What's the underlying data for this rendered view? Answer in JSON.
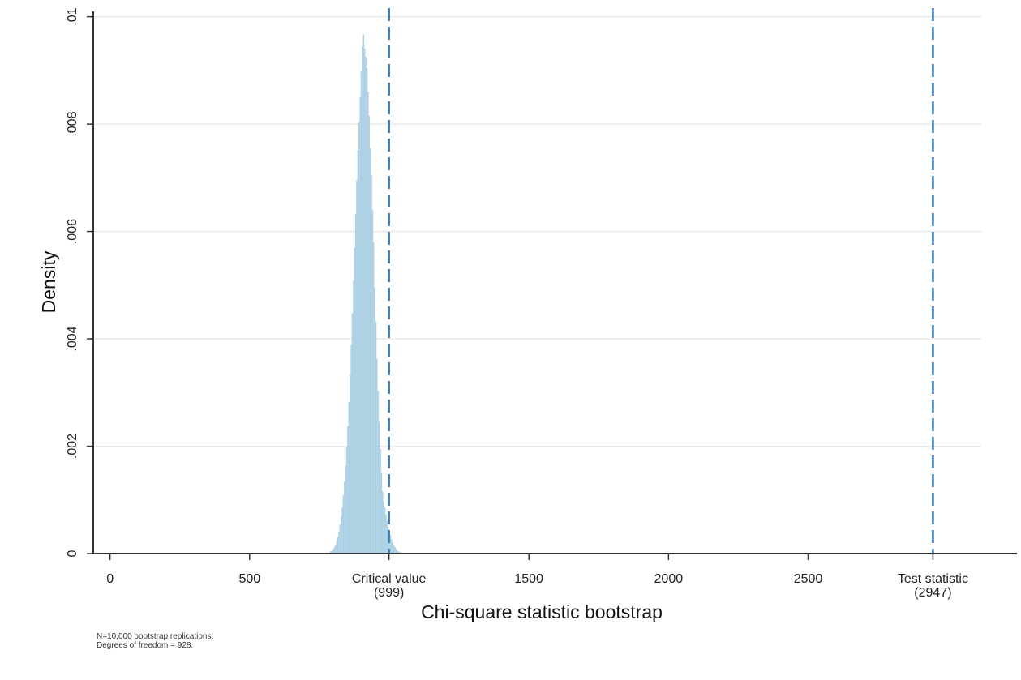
{
  "chart_data": {
    "type": "bar",
    "xlabel": "Chi-square statistic bootstrap",
    "ylabel": "Density",
    "xlim": [
      -60,
      3120
    ],
    "ylim": [
      0,
      0.0101
    ],
    "x_ticks": [
      {
        "value": 0,
        "label": "0"
      },
      {
        "value": 500,
        "label": "500"
      },
      {
        "value": 1500,
        "label": "1500"
      },
      {
        "value": 2000,
        "label": "2000"
      },
      {
        "value": 2500,
        "label": "2500"
      }
    ],
    "y_ticks": [
      {
        "value": 0,
        "label": "0"
      },
      {
        "value": 0.002,
        "label": ".002"
      },
      {
        "value": 0.004,
        "label": ".004"
      },
      {
        "value": 0.006,
        "label": ".006"
      },
      {
        "value": 0.008,
        "label": ".008"
      },
      {
        "value": 0.01,
        "label": ".01"
      }
    ],
    "grid": true,
    "bar_color": "#a9cfe3",
    "reference_lines": [
      {
        "x": 999,
        "label": "Critical value",
        "value_label": "(999)",
        "color": "#3d7fb8"
      },
      {
        "x": 2947,
        "label": "Test statistic",
        "value_label": "(2947)",
        "color": "#3d7fb8"
      }
    ],
    "histogram": {
      "bin_width": 4,
      "bins": [
        {
          "x": 788,
          "y": 3e-05
        },
        {
          "x": 792,
          "y": 4e-05
        },
        {
          "x": 796,
          "y": 5e-05
        },
        {
          "x": 800,
          "y": 8e-05
        },
        {
          "x": 804,
          "y": 0.00012
        },
        {
          "x": 808,
          "y": 0.00017
        },
        {
          "x": 812,
          "y": 0.00023
        },
        {
          "x": 816,
          "y": 0.00031
        },
        {
          "x": 820,
          "y": 0.00041
        },
        {
          "x": 824,
          "y": 0.00054
        },
        {
          "x": 828,
          "y": 0.00068
        },
        {
          "x": 832,
          "y": 0.00086
        },
        {
          "x": 836,
          "y": 0.00108
        },
        {
          "x": 840,
          "y": 0.00134
        },
        {
          "x": 844,
          "y": 0.00163
        },
        {
          "x": 848,
          "y": 0.00197
        },
        {
          "x": 852,
          "y": 0.00237
        },
        {
          "x": 856,
          "y": 0.00282
        },
        {
          "x": 860,
          "y": 0.00333
        },
        {
          "x": 864,
          "y": 0.00388
        },
        {
          "x": 868,
          "y": 0.00447
        },
        {
          "x": 872,
          "y": 0.00508
        },
        {
          "x": 876,
          "y": 0.0057
        },
        {
          "x": 880,
          "y": 0.00633
        },
        {
          "x": 884,
          "y": 0.00695
        },
        {
          "x": 888,
          "y": 0.00752
        },
        {
          "x": 892,
          "y": 0.00803
        },
        {
          "x": 896,
          "y": 0.0085
        },
        {
          "x": 900,
          "y": 0.00898
        },
        {
          "x": 904,
          "y": 0.00945
        },
        {
          "x": 908,
          "y": 0.00967
        },
        {
          "x": 912,
          "y": 0.0094
        },
        {
          "x": 916,
          "y": 0.00925
        },
        {
          "x": 920,
          "y": 0.00904
        },
        {
          "x": 924,
          "y": 0.0086
        },
        {
          "x": 928,
          "y": 0.00815
        },
        {
          "x": 932,
          "y": 0.00755
        },
        {
          "x": 936,
          "y": 0.00705
        },
        {
          "x": 940,
          "y": 0.0064
        },
        {
          "x": 944,
          "y": 0.0058
        },
        {
          "x": 948,
          "y": 0.00495
        },
        {
          "x": 952,
          "y": 0.00432
        },
        {
          "x": 956,
          "y": 0.00362
        },
        {
          "x": 960,
          "y": 0.00302
        },
        {
          "x": 964,
          "y": 0.00245
        },
        {
          "x": 968,
          "y": 0.00195
        },
        {
          "x": 972,
          "y": 0.0015
        },
        {
          "x": 976,
          "y": 0.00116
        },
        {
          "x": 980,
          "y": 0.00098
        },
        {
          "x": 984,
          "y": 0.00085
        },
        {
          "x": 988,
          "y": 0.00072
        },
        {
          "x": 992,
          "y": 0.0006
        },
        {
          "x": 996,
          "y": 0.0005
        },
        {
          "x": 1000,
          "y": 0.00042
        },
        {
          "x": 1004,
          "y": 0.00034
        },
        {
          "x": 1008,
          "y": 0.00027
        },
        {
          "x": 1012,
          "y": 0.00021
        },
        {
          "x": 1016,
          "y": 0.00016
        },
        {
          "x": 1020,
          "y": 0.00012
        },
        {
          "x": 1024,
          "y": 9e-05
        },
        {
          "x": 1028,
          "y": 6e-05
        },
        {
          "x": 1032,
          "y": 4e-05
        },
        {
          "x": 1036,
          "y": 3e-05
        },
        {
          "x": 1040,
          "y": 2e-05
        }
      ]
    }
  },
  "notes": {
    "line1": "N=10,000 bootstrap replications.",
    "line2": "Degrees of freedom = 928."
  }
}
